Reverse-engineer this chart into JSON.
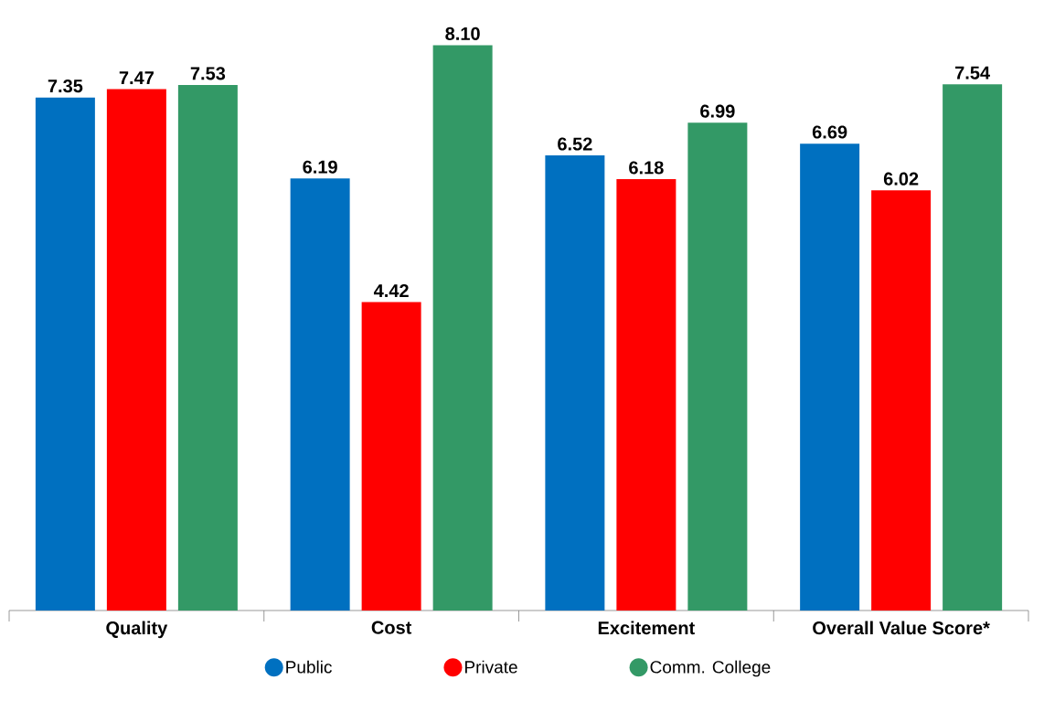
{
  "chart_data": {
    "type": "bar",
    "categories": [
      "Quality",
      "Cost",
      "Excitement",
      "Overall Value Score*"
    ],
    "series": [
      {
        "name": "Public",
        "color": "#0070c0",
        "values": [
          7.35,
          6.19,
          6.52,
          6.69
        ],
        "value_labels": [
          "7.35",
          "6.19",
          "6.52",
          "6.69"
        ]
      },
      {
        "name": "Private",
        "color": "#ff0000",
        "values": [
          7.47,
          4.42,
          6.18,
          6.02
        ],
        "value_labels": [
          "7.47",
          "4.42",
          "6.18",
          "6.02"
        ]
      },
      {
        "name": "Comm. College",
        "color": "#339966",
        "values": [
          7.53,
          8.1,
          6.99,
          7.54
        ],
        "value_labels": [
          "7.53",
          "8.10",
          "6.99",
          "7.54"
        ]
      }
    ],
    "legend": "bottom"
  }
}
